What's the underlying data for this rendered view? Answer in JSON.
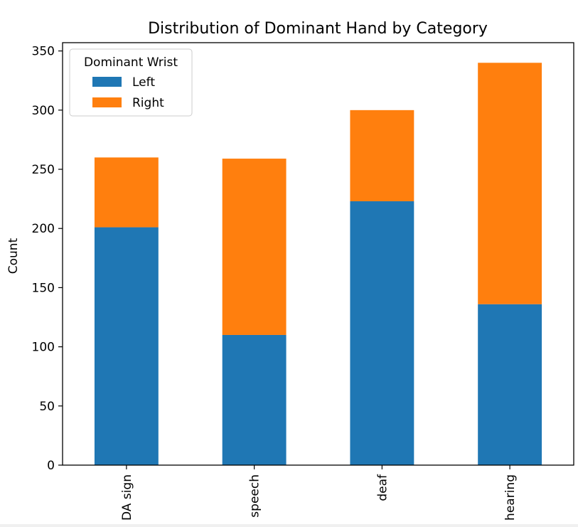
{
  "chart_data": {
    "type": "bar",
    "stacked": true,
    "title": "Distribution of Dominant Hand by Category",
    "xlabel": "",
    "ylabel": "Count",
    "categories": [
      "CODA sign",
      "CODA speech",
      "deaf",
      "hearing"
    ],
    "category_labels_shown": [
      "DA sign",
      "speech",
      "deaf",
      "hearing"
    ],
    "series": [
      {
        "name": "Left",
        "values": [
          201,
          110,
          223,
          136
        ],
        "color": "#1f77b4"
      },
      {
        "name": "Right",
        "values": [
          59,
          149,
          77,
          204
        ],
        "color": "#ff7f0e"
      }
    ],
    "ylim": [
      0,
      357
    ],
    "yticks": [
      0,
      50,
      100,
      150,
      200,
      250,
      300,
      350
    ],
    "legend": {
      "title": "Dominant Wrist",
      "placement": "top-left"
    },
    "grid": false
  }
}
